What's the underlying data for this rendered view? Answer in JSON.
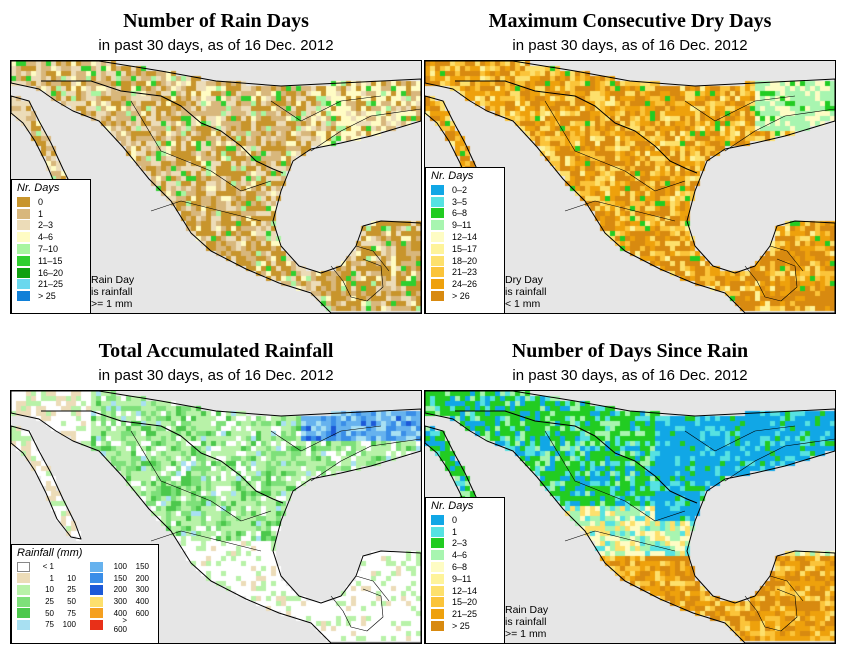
{
  "colors": {
    "land": "#e0c596",
    "ocean": "#e6e6e6",
    "border": "#000000"
  },
  "panels": [
    {
      "title": "Number of Rain Days",
      "subtitle": "in past 30 days, as of  16 Dec. 2012",
      "palette": "tan",
      "legend": {
        "title": "Nr. Days",
        "items": [
          {
            "label": "0",
            "color": "#c8952c"
          },
          {
            "label": "1",
            "color": "#d8b77c"
          },
          {
            "label": "2–3",
            "color": "#ecdcb8"
          },
          {
            "label": "4–6",
            "color": "#fffcc4"
          },
          {
            "label": "7–10",
            "color": "#a8f5a0"
          },
          {
            "label": "11–15",
            "color": "#2fcf2f"
          },
          {
            "label": "16–20",
            "color": "#10a010"
          },
          {
            "label": "21–25",
            "color": "#6ad8ee"
          },
          {
            "label": "> 25",
            "color": "#1080d8"
          }
        ]
      },
      "note": [
        "Rain Day",
        "is rainfall",
        ">= 1 mm"
      ]
    },
    {
      "title": "Maximum Consecutive Dry Days",
      "subtitle": "in past 30 days, as of  16 Dec. 2012",
      "palette": "orange",
      "legend": {
        "title": "Nr. Days",
        "items": [
          {
            "label": "0–2",
            "color": "#11a7e6"
          },
          {
            "label": "3–5",
            "color": "#56e2e2"
          },
          {
            "label": "6–8",
            "color": "#22cc22"
          },
          {
            "label": "9–11",
            "color": "#a8f5b0"
          },
          {
            "label": "12–14",
            "color": "#fefcc4"
          },
          {
            "label": "15–17",
            "color": "#fef39a"
          },
          {
            "label": "18–20",
            "color": "#fde06c"
          },
          {
            "label": "21–23",
            "color": "#fbc43a"
          },
          {
            "label": "24–26",
            "color": "#eea10c"
          },
          {
            "label": "> 26",
            "color": "#d88a10"
          }
        ]
      },
      "note": [
        "Dry Day",
        "is rainfall",
        "< 1 mm"
      ]
    },
    {
      "title": "Total Accumulated Rainfall",
      "subtitle": "in past 30 days, as of  16 Dec. 2012",
      "palette": "rain",
      "legend": {
        "title": "Rainfall (mm)",
        "items": [
          {
            "a": "< 1",
            "b": "",
            "color": "#ffffff"
          },
          {
            "a": "1",
            "b": "10",
            "color": "#ecdcb8"
          },
          {
            "a": "10",
            "b": "25",
            "color": "#b8f2a8"
          },
          {
            "a": "25",
            "b": "50",
            "color": "#7ee07a"
          },
          {
            "a": "50",
            "b": "75",
            "color": "#4cc84c"
          },
          {
            "a": "75",
            "b": "100",
            "color": "#a8e0f2"
          },
          {
            "a": "100",
            "b": "150",
            "color": "#66b2ee"
          },
          {
            "a": "150",
            "b": "200",
            "color": "#3a8ee8"
          },
          {
            "a": "200",
            "b": "300",
            "color": "#1c5ad8"
          },
          {
            "a": "300",
            "b": "400",
            "color": "#fde06c"
          },
          {
            "a": "400",
            "b": "600",
            "color": "#f5a020"
          },
          {
            "a": "> 600",
            "b": "",
            "color": "#e83018"
          }
        ]
      },
      "note": []
    },
    {
      "title": "Number of Days Since Rain",
      "subtitle": "in past 30 days, as of  16 Dec. 2012",
      "palette": "since",
      "legend": {
        "title": "Nr. Days",
        "items": [
          {
            "label": "0",
            "color": "#11a7e6"
          },
          {
            "label": "1",
            "color": "#56e2e2"
          },
          {
            "label": "2–3",
            "color": "#22cc22"
          },
          {
            "label": "4–6",
            "color": "#a8f5b0"
          },
          {
            "label": "6–8",
            "color": "#fefcc4"
          },
          {
            "label": "9–11",
            "color": "#fef39a"
          },
          {
            "label": "12–14",
            "color": "#fde06c"
          },
          {
            "label": "15–20",
            "color": "#fbc43a"
          },
          {
            "label": "21–25",
            "color": "#eea10c"
          },
          {
            "label": "> 25",
            "color": "#d88a10"
          }
        ]
      },
      "note": [
        "Rain Day",
        "is rainfall",
        ">= 1 mm"
      ]
    }
  ]
}
